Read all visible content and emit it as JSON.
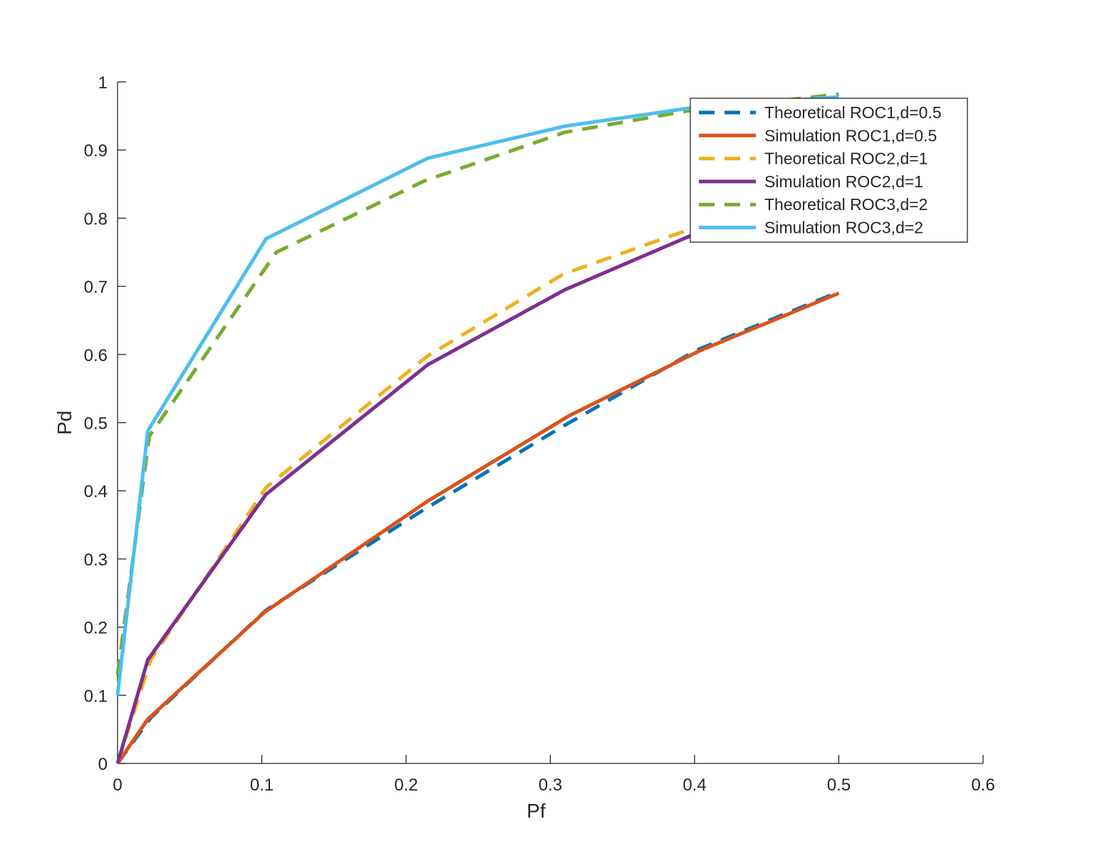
{
  "chart_data": {
    "type": "line",
    "title": "",
    "xlabel": "Pf",
    "ylabel": "Pd",
    "xlim": [
      0,
      0.6
    ],
    "ylim": [
      0,
      1
    ],
    "xticks": [
      0,
      0.1,
      0.2,
      0.3,
      0.4,
      0.5,
      0.6
    ],
    "yticks": [
      0,
      0.1,
      0.2,
      0.3,
      0.4,
      0.5,
      0.6,
      0.7,
      0.8,
      0.9,
      1
    ],
    "xtick_labels": [
      "0",
      "0.1",
      "0.2",
      "0.3",
      "0.4",
      "0.5",
      "0.6"
    ],
    "ytick_labels": [
      "0",
      "0.1",
      "0.2",
      "0.3",
      "0.4",
      "0.5",
      "0.6",
      "0.7",
      "0.8",
      "0.9",
      "1"
    ],
    "grid": false,
    "legend_position": "top-right",
    "series": [
      {
        "name": "Theoretical ROC1,d=0.5",
        "style": "dashed",
        "color": "#0072BD",
        "x": [
          0,
          0.023,
          0.103,
          0.212,
          0.309,
          0.401,
          0.5
        ],
        "y": [
          0,
          0.067,
          0.225,
          0.372,
          0.495,
          0.606,
          0.692
        ]
      },
      {
        "name": "Simulation ROC1,d=0.5",
        "style": "solid",
        "color": "#D95319",
        "x": [
          0,
          0.021,
          0.102,
          0.215,
          0.313,
          0.403,
          0.5
        ],
        "y": [
          0,
          0.065,
          0.222,
          0.385,
          0.51,
          0.605,
          0.69
        ]
      },
      {
        "name": "Theoretical ROC2,d=1",
        "style": "dashed",
        "color": "#EDB120",
        "x": [
          0,
          0.023,
          0.103,
          0.215,
          0.309,
          0.401,
          0.5
        ],
        "y": [
          0,
          0.152,
          0.405,
          0.598,
          0.718,
          0.787,
          0.862
        ]
      },
      {
        "name": "Simulation ROC2,d=1",
        "style": "solid",
        "color": "#7E2F8E",
        "x": [
          0,
          0.021,
          0.103,
          0.215,
          0.31,
          0.398,
          0.5
        ],
        "y": [
          0,
          0.152,
          0.395,
          0.585,
          0.695,
          0.775,
          0.862
        ]
      },
      {
        "name": "Theoretical ROC3,d=2",
        "style": "dashed",
        "color": "#77AC30",
        "x": [
          0,
          0.022,
          0.11,
          0.213,
          0.31,
          0.397,
          0.5
        ],
        "y": [
          0.13,
          0.48,
          0.75,
          0.855,
          0.926,
          0.958,
          0.982
        ]
      },
      {
        "name": "Simulation ROC3,d=2",
        "style": "solid",
        "color": "#4DBEEE",
        "x": [
          0,
          0.021,
          0.103,
          0.215,
          0.31,
          0.398,
          0.5
        ],
        "y": [
          0.1,
          0.488,
          0.77,
          0.888,
          0.935,
          0.962,
          0.978
        ]
      }
    ]
  }
}
